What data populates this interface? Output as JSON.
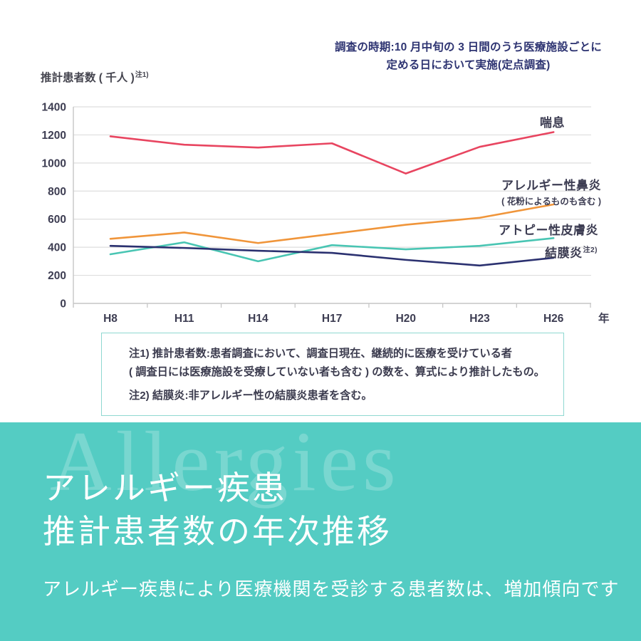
{
  "header": {
    "survey_note_line1": "調査の時期:10 月中旬の 3 日間のうち医療施設ごとに",
    "survey_note_line2": "定める日において実施(定点調査)",
    "y_axis_title": "推計患者数 ( 千人 )",
    "y_axis_title_sup": "注1)",
    "x_axis_unit": "年"
  },
  "chart_data": {
    "type": "line",
    "categories": [
      "H8",
      "H11",
      "H14",
      "H17",
      "H20",
      "H23",
      "H26"
    ],
    "series": [
      {
        "name": "喘息",
        "color": "#e84560",
        "values": [
          1190,
          1130,
          1110,
          1140,
          925,
          1115,
          1220
        ]
      },
      {
        "name": "アレルギー性鼻炎",
        "subname": "( 花粉によるものも含む )",
        "color": "#f0953a",
        "values": [
          460,
          505,
          430,
          495,
          560,
          610,
          705
        ]
      },
      {
        "name": "アトピー性皮膚炎",
        "color": "#49c5b3",
        "values": [
          350,
          435,
          300,
          415,
          385,
          410,
          465
        ]
      },
      {
        "name": "結膜炎",
        "name_sup": "注2)",
        "color": "#2b3170",
        "values": [
          410,
          395,
          375,
          360,
          310,
          270,
          325
        ]
      }
    ],
    "ylabel": "推計患者数 ( 千人 )",
    "xlabel": "年",
    "ylim": [
      0,
      1400
    ],
    "ytick_step": 200,
    "grid": "horizontal",
    "legend_position": "right-of-lines"
  },
  "notes": {
    "note1_line1": "注1) 推計患者数:患者調査において、調査日現在、継続的に医療を受けている者",
    "note1_line2": "( 調査日には医療施設を受療していない者も含む ) の数を、算式により推計したもの。",
    "note2": "注2) 結膜炎:非アレルギー性の結膜炎患者を含む。"
  },
  "banner": {
    "watermark": "Allergies",
    "title_line1": "アレルギー疾患",
    "title_line2": "推計患者数の年次推移",
    "subtitle": "アレルギー疾患により医療機関を受診する患者数は、増加傾向です",
    "background_color": "#54ccc3"
  }
}
